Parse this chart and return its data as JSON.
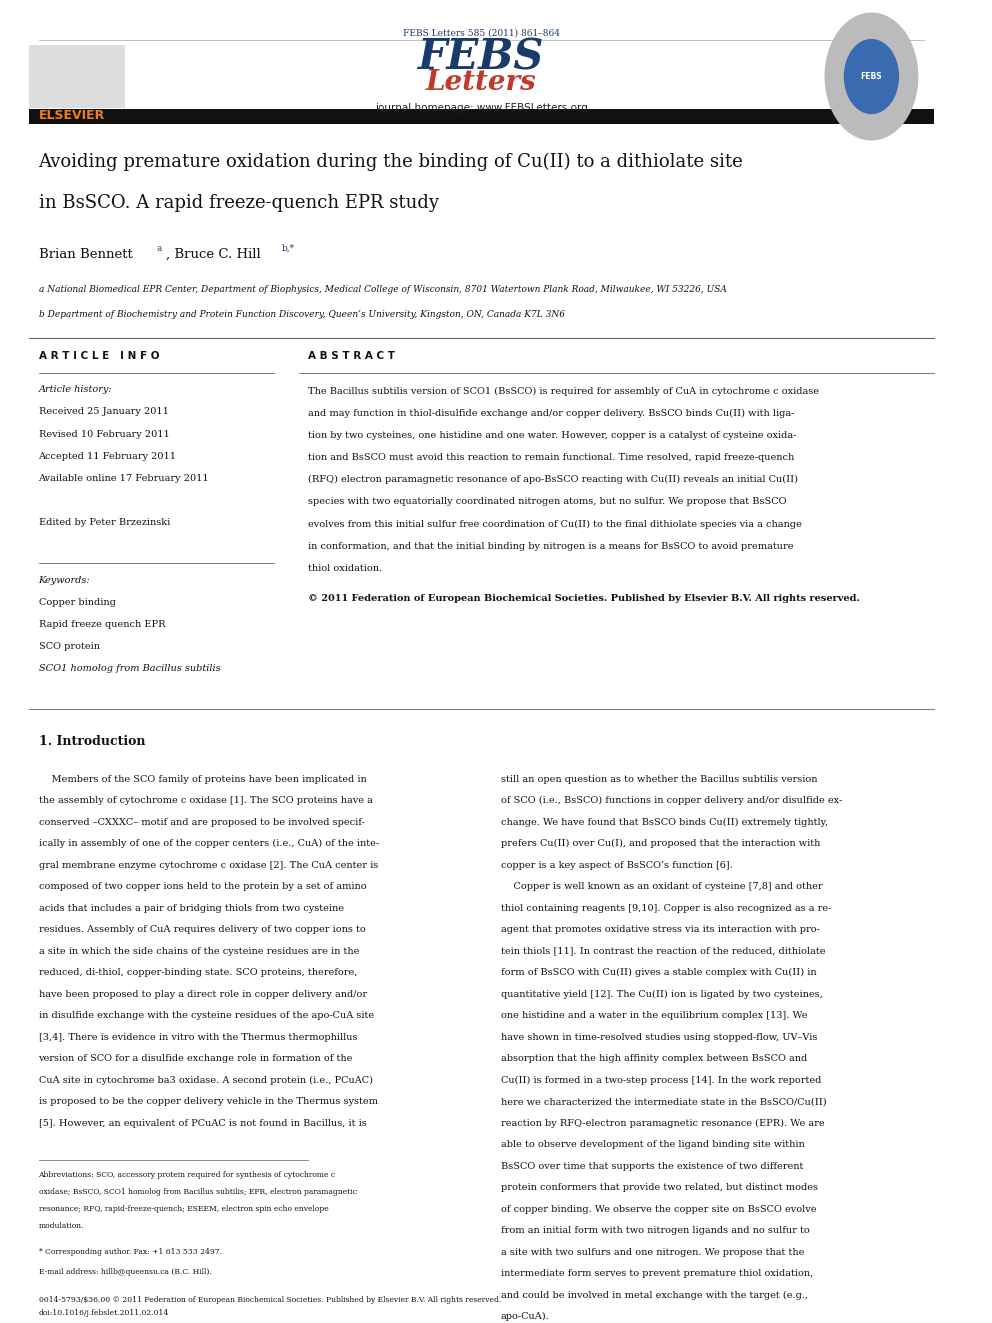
{
  "journal_ref": "FEBS Letters 585 (2011) 861–864",
  "journal_ref_color": "#1a3a6b",
  "elsevier_color": "#f47920",
  "journal_homepage": "journal homepage: www.FEBSLetters.org",
  "title_line1": "Avoiding premature oxidation during the binding of Cu(II) to a dithiolate site",
  "title_line2": "in BsSCO. A rapid freeze-quench EPR study",
  "affil_a": "a National Biomedical EPR Center, Department of Biophysics, Medical College of Wisconsin, 8701 Watertown Plank Road, Milwaukee, WI 53226, USA",
  "affil_b": "b Department of Biochemistry and Protein Function Discovery, Queen’s University, Kingston, ON, Canada K7L 3N6",
  "article_info_header": "A R T I C L E   I N F O",
  "abstract_header": "A B S T R A C T",
  "article_history_label": "Article history:",
  "received": "Received 25 January 2011",
  "revised": "Revised 10 February 2011",
  "accepted": "Accepted 11 February 2011",
  "available": "Available online 17 February 2011",
  "edited_by": "Edited by Peter Brzezinski",
  "keywords_label": "Keywords:",
  "keyword1": "Copper binding",
  "keyword2": "Rapid freeze quench EPR",
  "keyword3": "SCO protein",
  "keyword4": "SCO1 homolog from Bacillus subtilis",
  "copyright_text": "© 2011 Federation of European Biochemical Societies. Published by Elsevier B.V. All rights reserved.",
  "intro_header": "1. Introduction",
  "footnote_abbrev1": "Abbreviations: SCO, accessory protein required for synthesis of cytochrome c",
  "footnote_abbrev2": "oxidase; BsSCO, SCO1 homolog from Bacillus subtilis; EPR, electron paramagnetic",
  "footnote_abbrev3": "resonance; RFQ, rapid-freeze-quench; ESEEM, electron spin echo envelope",
  "footnote_abbrev4": "modulation.",
  "footnote_corr": "* Corresponding author. Fax: +1 613 533 2497.",
  "footnote_email": "E-mail address: hillb@queensu.ca (B.C. Hill).",
  "bottom_bar1": "0014-5793/$36.00 © 2011 Federation of European Biochemical Societies. Published by Elsevier B.V. All rights reserved.",
  "bottom_bar2": "doi:10.1016/j.febslet.2011.02.014",
  "bg_color": "#ffffff",
  "text_color": "#000000",
  "header_bar_color": "#1a1a1a",
  "abstract_lines": [
    "The Bacillus subtilis version of SCO1 (BsSCO) is required for assembly of CuA in cytochrome c oxidase",
    "and may function in thiol-disulfide exchange and/or copper delivery. BsSCO binds Cu(II) with liga-",
    "tion by two cysteines, one histidine and one water. However, copper is a catalyst of cysteine oxida-",
    "tion and BsSCO must avoid this reaction to remain functional. Time resolved, rapid freeze-quench",
    "(RFQ) electron paramagnetic resonance of apo-BsSCO reacting with Cu(II) reveals an initial Cu(II)",
    "species with two equatorially coordinated nitrogen atoms, but no sulfur. We propose that BsSCO",
    "evolves from this initial sulfur free coordination of Cu(II) to the final dithiolate species via a change",
    "in conformation, and that the initial binding by nitrogen is a means for BsSCO to avoid premature",
    "thiol oxidation."
  ],
  "intro_col1": [
    "    Members of the SCO family of proteins have been implicated in",
    "the assembly of cytochrome c oxidase [1]. The SCO proteins have a",
    "conserved –CXXXC– motif and are proposed to be involved specif-",
    "ically in assembly of one of the copper centers (i.e., CuA) of the inte-",
    "gral membrane enzyme cytochrome c oxidase [2]. The CuA center is",
    "composed of two copper ions held to the protein by a set of amino",
    "acids that includes a pair of bridging thiols from two cysteine",
    "residues. Assembly of CuA requires delivery of two copper ions to",
    "a site in which the side chains of the cysteine residues are in the",
    "reduced, di-thiol, copper-binding state. SCO proteins, therefore,",
    "have been proposed to play a direct role in copper delivery and/or",
    "in disulfide exchange with the cysteine residues of the apo-CuA site",
    "[3,4]. There is evidence in vitro with the Thermus thermophillus",
    "version of SCO for a disulfide exchange role in formation of the",
    "CuA site in cytochrome ba3 oxidase. A second protein (i.e., PCuAC)",
    "is proposed to be the copper delivery vehicle in the Thermus system",
    "[5]. However, an equivalent of PCuAC is not found in Bacillus, it is"
  ],
  "intro_col2": [
    "still an open question as to whether the Bacillus subtilis version",
    "of SCO (i.e., BsSCO) functions in copper delivery and/or disulfide ex-",
    "change. We have found that BsSCO binds Cu(II) extremely tightly,",
    "prefers Cu(II) over Cu(I), and proposed that the interaction with",
    "copper is a key aspect of BsSCO’s function [6].",
    "    Copper is well known as an oxidant of cysteine [7,8] and other",
    "thiol containing reagents [9,10]. Copper is also recognized as a re-",
    "agent that promotes oxidative stress via its interaction with pro-",
    "tein thiols [11]. In contrast the reaction of the reduced, dithiolate",
    "form of BsSCO with Cu(II) gives a stable complex with Cu(II) in",
    "quantitative yield [12]. The Cu(II) ion is ligated by two cysteines,",
    "one histidine and a water in the equilibrium complex [13]. We",
    "have shown in time-resolved studies using stopped-flow, UV–Vis",
    "absorption that the high affinity complex between BsSCO and",
    "Cu(II) is formed in a two-step process [14]. In the work reported",
    "here we characterized the intermediate state in the BsSCO/Cu(II)",
    "reaction by RFQ-electron paramagnetic resonance (EPR). We are",
    "able to observe development of the ligand binding site within",
    "BsSCO over time that supports the existence of two different",
    "protein conformers that provide two related, but distinct modes",
    "of copper binding. We observe the copper site on BsSCO evolve",
    "from an initial form with two nitrogen ligands and no sulfur to",
    "a site with two sulfurs and one nitrogen. We propose that the",
    "intermediate form serves to prevent premature thiol oxidation,",
    "and could be involved in metal exchange with the target (e.g.,",
    "apo-CuA)."
  ]
}
